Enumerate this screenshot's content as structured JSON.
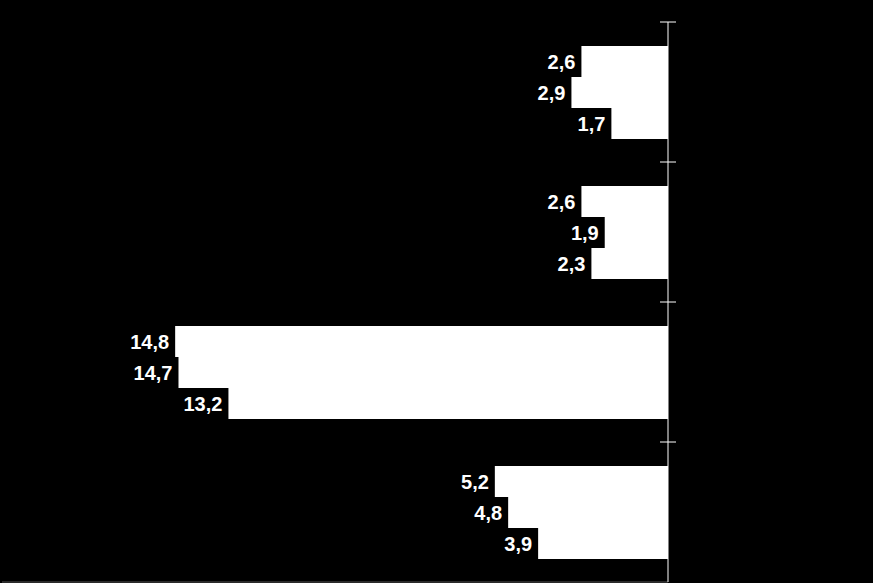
{
  "chart_data": {
    "type": "bar",
    "orientation": "horizontal",
    "categories": [
      null,
      null,
      null,
      null
    ],
    "series": [
      {
        "color": "#ffffff",
        "values": [
          2.6,
          2.6,
          14.8,
          5.2
        ],
        "value_labels": [
          "2,6",
          "2,6",
          "14,8",
          "5,2"
        ]
      },
      {
        "color": "#ffffff",
        "values": [
          2.9,
          1.9,
          14.7,
          4.8
        ],
        "value_labels": [
          "2,9",
          "1,9",
          "14,7",
          "4,8"
        ]
      },
      {
        "color": "#ffffff",
        "values": [
          1.7,
          2.3,
          13.2,
          3.9
        ],
        "value_labels": [
          "1,7",
          "2,3",
          "13,2",
          "3,9"
        ]
      }
    ],
    "xlim": [
      0,
      20
    ],
    "data_labels": true,
    "tick_labels": false,
    "grid": false
  }
}
